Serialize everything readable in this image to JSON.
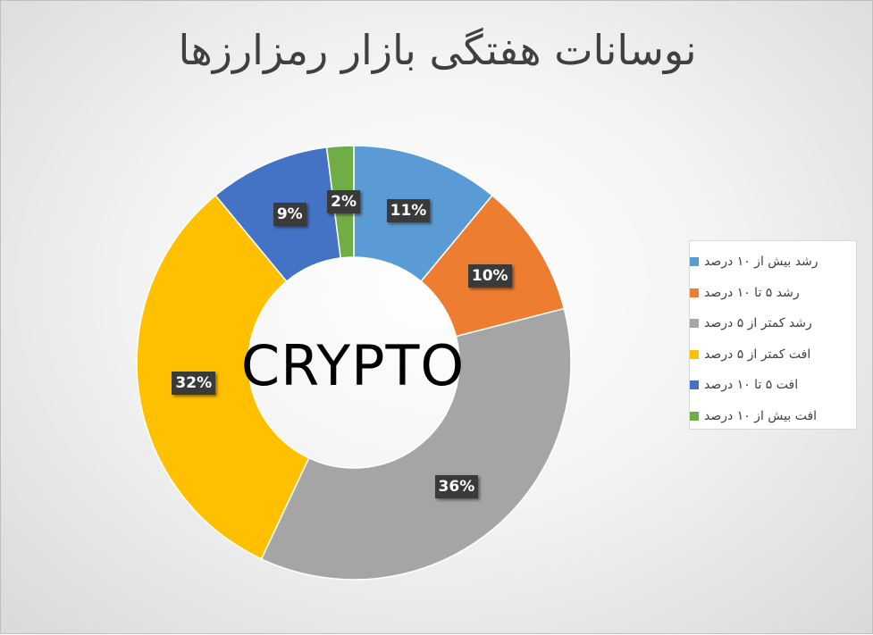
{
  "chart_data": {
    "type": "pie",
    "title": "نوسانات هفتگی بازار رمزارزها",
    "center_label": "CRYPTO",
    "categories": [
      "رشد بیش از ۱۰ درصد",
      "رشد ۵ تا ۱۰ درصد",
      "رشد کمتر از ۵ درصد",
      "افت کمتر از ۵ درصد",
      "افت ۵ تا ۱۰ درصد",
      "افت بیش از ۱۰ درصد"
    ],
    "values": [
      11,
      10,
      36,
      32,
      9,
      2
    ],
    "labels": [
      "11%",
      "10%",
      "36%",
      "32%",
      "9%",
      "2%"
    ],
    "colors": [
      "#5b9bd5",
      "#ed7d31",
      "#a5a5a5",
      "#ffc000",
      "#4472c4",
      "#70ad47"
    ],
    "legend_position": "right"
  }
}
